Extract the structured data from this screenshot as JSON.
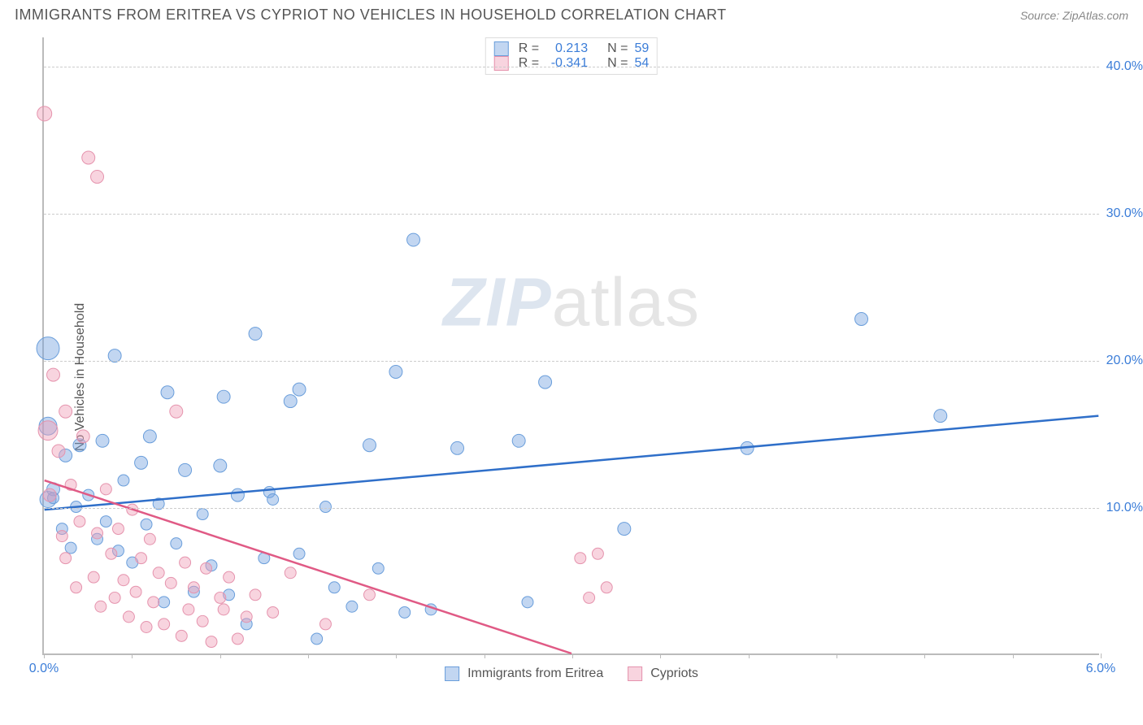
{
  "header": {
    "title": "IMMIGRANTS FROM ERITREA VS CYPRIOT NO VEHICLES IN HOUSEHOLD CORRELATION CHART",
    "source": "Source: ZipAtlas.com"
  },
  "chart": {
    "type": "scatter",
    "ylabel": "No Vehicles in Household",
    "watermark_a": "ZIP",
    "watermark_b": "atlas",
    "xlim": [
      0.0,
      6.0
    ],
    "ylim": [
      0.0,
      42.0
    ],
    "x_ticks": [
      0.0,
      0.5,
      1.0,
      1.5,
      2.0,
      2.5,
      3.0,
      3.5,
      4.0,
      4.5,
      5.0,
      5.5,
      6.0
    ],
    "x_tick_labels": {
      "0": "0.0%",
      "12": "6.0%"
    },
    "y_gridlines": [
      10.0,
      20.0,
      30.0,
      40.0
    ],
    "y_tick_labels": [
      "10.0%",
      "20.0%",
      "30.0%",
      "40.0%"
    ],
    "background_color": "#ffffff",
    "grid_color": "#cccccc",
    "series": [
      {
        "name": "Immigrants from Eritrea",
        "color_fill": "rgba(120,165,225,0.45)",
        "color_stroke": "#6a9edb",
        "line_color": "#2f6fc9",
        "r_label": "R =",
        "r_value": "0.213",
        "n_label": "N =",
        "n_value": "59",
        "regression": {
          "x1": 0.0,
          "y1": 9.8,
          "x2": 6.0,
          "y2": 16.2
        },
        "points": [
          {
            "x": 0.02,
            "y": 20.8,
            "r": 14
          },
          {
            "x": 0.02,
            "y": 10.5,
            "r": 10
          },
          {
            "x": 0.02,
            "y": 15.5,
            "r": 11
          },
          {
            "x": 0.05,
            "y": 11.2,
            "r": 8
          },
          {
            "x": 0.05,
            "y": 10.6,
            "r": 7
          },
          {
            "x": 0.1,
            "y": 8.5,
            "r": 7
          },
          {
            "x": 0.12,
            "y": 13.5,
            "r": 8
          },
          {
            "x": 0.15,
            "y": 7.2,
            "r": 7
          },
          {
            "x": 0.18,
            "y": 10.0,
            "r": 7
          },
          {
            "x": 0.2,
            "y": 14.2,
            "r": 8
          },
          {
            "x": 0.25,
            "y": 10.8,
            "r": 7
          },
          {
            "x": 0.3,
            "y": 7.8,
            "r": 7
          },
          {
            "x": 0.33,
            "y": 14.5,
            "r": 8
          },
          {
            "x": 0.35,
            "y": 9.0,
            "r": 7
          },
          {
            "x": 0.4,
            "y": 20.3,
            "r": 8
          },
          {
            "x": 0.42,
            "y": 7.0,
            "r": 7
          },
          {
            "x": 0.45,
            "y": 11.8,
            "r": 7
          },
          {
            "x": 0.5,
            "y": 6.2,
            "r": 7
          },
          {
            "x": 0.55,
            "y": 13.0,
            "r": 8
          },
          {
            "x": 0.58,
            "y": 8.8,
            "r": 7
          },
          {
            "x": 0.6,
            "y": 14.8,
            "r": 8
          },
          {
            "x": 0.65,
            "y": 10.2,
            "r": 7
          },
          {
            "x": 0.68,
            "y": 3.5,
            "r": 7
          },
          {
            "x": 0.7,
            "y": 17.8,
            "r": 8
          },
          {
            "x": 0.75,
            "y": 7.5,
            "r": 7
          },
          {
            "x": 0.8,
            "y": 12.5,
            "r": 8
          },
          {
            "x": 0.85,
            "y": 4.2,
            "r": 7
          },
          {
            "x": 0.9,
            "y": 9.5,
            "r": 7
          },
          {
            "x": 0.95,
            "y": 6.0,
            "r": 7
          },
          {
            "x": 1.0,
            "y": 12.8,
            "r": 8
          },
          {
            "x": 1.02,
            "y": 17.5,
            "r": 8
          },
          {
            "x": 1.05,
            "y": 4.0,
            "r": 7
          },
          {
            "x": 1.1,
            "y": 10.8,
            "r": 8
          },
          {
            "x": 1.15,
            "y": 2.0,
            "r": 7
          },
          {
            "x": 1.2,
            "y": 21.8,
            "r": 8
          },
          {
            "x": 1.25,
            "y": 6.5,
            "r": 7
          },
          {
            "x": 1.28,
            "y": 11.0,
            "r": 7
          },
          {
            "x": 1.3,
            "y": 10.5,
            "r": 7
          },
          {
            "x": 1.4,
            "y": 17.2,
            "r": 8
          },
          {
            "x": 1.45,
            "y": 6.8,
            "r": 7
          },
          {
            "x": 1.55,
            "y": 1.0,
            "r": 7
          },
          {
            "x": 1.6,
            "y": 10.0,
            "r": 7
          },
          {
            "x": 1.65,
            "y": 4.5,
            "r": 7
          },
          {
            "x": 1.75,
            "y": 3.2,
            "r": 7
          },
          {
            "x": 1.85,
            "y": 14.2,
            "r": 8
          },
          {
            "x": 1.9,
            "y": 5.8,
            "r": 7
          },
          {
            "x": 2.0,
            "y": 19.2,
            "r": 8
          },
          {
            "x": 2.05,
            "y": 2.8,
            "r": 7
          },
          {
            "x": 2.1,
            "y": 28.2,
            "r": 8
          },
          {
            "x": 2.2,
            "y": 3.0,
            "r": 7
          },
          {
            "x": 2.35,
            "y": 14.0,
            "r": 8
          },
          {
            "x": 2.7,
            "y": 14.5,
            "r": 8
          },
          {
            "x": 2.75,
            "y": 3.5,
            "r": 7
          },
          {
            "x": 2.85,
            "y": 18.5,
            "r": 8
          },
          {
            "x": 3.3,
            "y": 8.5,
            "r": 8
          },
          {
            "x": 4.0,
            "y": 14.0,
            "r": 8
          },
          {
            "x": 4.65,
            "y": 22.8,
            "r": 8
          },
          {
            "x": 5.1,
            "y": 16.2,
            "r": 8
          },
          {
            "x": 1.45,
            "y": 18.0,
            "r": 8
          }
        ]
      },
      {
        "name": "Cypriots",
        "color_fill": "rgba(240,160,185,0.45)",
        "color_stroke": "#e593ad",
        "line_color": "#e05a85",
        "r_label": "R =",
        "r_value": "-0.341",
        "n_label": "N =",
        "n_value": "54",
        "regression": {
          "x1": 0.0,
          "y1": 11.8,
          "x2": 3.0,
          "y2": 0.0
        },
        "points": [
          {
            "x": 0.0,
            "y": 36.8,
            "r": 9
          },
          {
            "x": 0.02,
            "y": 15.2,
            "r": 12
          },
          {
            "x": 0.03,
            "y": 10.8,
            "r": 8
          },
          {
            "x": 0.05,
            "y": 19.0,
            "r": 8
          },
          {
            "x": 0.08,
            "y": 13.8,
            "r": 8
          },
          {
            "x": 0.1,
            "y": 8.0,
            "r": 7
          },
          {
            "x": 0.12,
            "y": 16.5,
            "r": 8
          },
          {
            "x": 0.12,
            "y": 6.5,
            "r": 7
          },
          {
            "x": 0.15,
            "y": 11.5,
            "r": 7
          },
          {
            "x": 0.18,
            "y": 4.5,
            "r": 7
          },
          {
            "x": 0.2,
            "y": 9.0,
            "r": 7
          },
          {
            "x": 0.22,
            "y": 14.8,
            "r": 8
          },
          {
            "x": 0.25,
            "y": 33.8,
            "r": 8
          },
          {
            "x": 0.28,
            "y": 5.2,
            "r": 7
          },
          {
            "x": 0.3,
            "y": 32.5,
            "r": 8
          },
          {
            "x": 0.3,
            "y": 8.2,
            "r": 7
          },
          {
            "x": 0.32,
            "y": 3.2,
            "r": 7
          },
          {
            "x": 0.35,
            "y": 11.2,
            "r": 7
          },
          {
            "x": 0.38,
            "y": 6.8,
            "r": 7
          },
          {
            "x": 0.4,
            "y": 3.8,
            "r": 7
          },
          {
            "x": 0.42,
            "y": 8.5,
            "r": 7
          },
          {
            "x": 0.45,
            "y": 5.0,
            "r": 7
          },
          {
            "x": 0.48,
            "y": 2.5,
            "r": 7
          },
          {
            "x": 0.5,
            "y": 9.8,
            "r": 7
          },
          {
            "x": 0.52,
            "y": 4.2,
            "r": 7
          },
          {
            "x": 0.55,
            "y": 6.5,
            "r": 7
          },
          {
            "x": 0.58,
            "y": 1.8,
            "r": 7
          },
          {
            "x": 0.6,
            "y": 7.8,
            "r": 7
          },
          {
            "x": 0.62,
            "y": 3.5,
            "r": 7
          },
          {
            "x": 0.65,
            "y": 5.5,
            "r": 7
          },
          {
            "x": 0.68,
            "y": 2.0,
            "r": 7
          },
          {
            "x": 0.72,
            "y": 4.8,
            "r": 7
          },
          {
            "x": 0.75,
            "y": 16.5,
            "r": 8
          },
          {
            "x": 0.78,
            "y": 1.2,
            "r": 7
          },
          {
            "x": 0.8,
            "y": 6.2,
            "r": 7
          },
          {
            "x": 0.82,
            "y": 3.0,
            "r": 7
          },
          {
            "x": 0.85,
            "y": 4.5,
            "r": 7
          },
          {
            "x": 0.9,
            "y": 2.2,
            "r": 7
          },
          {
            "x": 0.92,
            "y": 5.8,
            "r": 7
          },
          {
            "x": 0.95,
            "y": 0.8,
            "r": 7
          },
          {
            "x": 1.0,
            "y": 3.8,
            "r": 7
          },
          {
            "x": 1.02,
            "y": 3.0,
            "r": 7
          },
          {
            "x": 1.05,
            "y": 5.2,
            "r": 7
          },
          {
            "x": 1.1,
            "y": 1.0,
            "r": 7
          },
          {
            "x": 1.15,
            "y": 2.5,
            "r": 7
          },
          {
            "x": 1.2,
            "y": 4.0,
            "r": 7
          },
          {
            "x": 1.3,
            "y": 2.8,
            "r": 7
          },
          {
            "x": 1.4,
            "y": 5.5,
            "r": 7
          },
          {
            "x": 1.6,
            "y": 2.0,
            "r": 7
          },
          {
            "x": 1.85,
            "y": 4.0,
            "r": 7
          },
          {
            "x": 3.05,
            "y": 6.5,
            "r": 7
          },
          {
            "x": 3.1,
            "y": 3.8,
            "r": 7
          },
          {
            "x": 3.15,
            "y": 6.8,
            "r": 7
          },
          {
            "x": 3.2,
            "y": 4.5,
            "r": 7
          }
        ]
      }
    ]
  }
}
